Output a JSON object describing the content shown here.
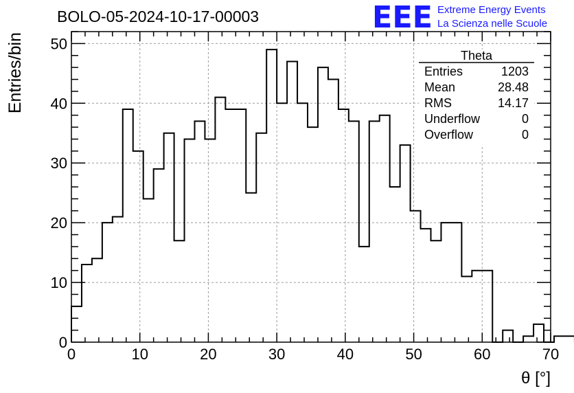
{
  "header": {
    "run_title": "BOLO-05-2024-10-17-00003",
    "logo_text": "EEE",
    "logo_line1": "Extreme Energy Events",
    "logo_line2": "La Scienza nelle Scuole"
  },
  "stats_box": {
    "title": "Theta",
    "rows": [
      {
        "label": "Entries",
        "value": "1203"
      },
      {
        "label": "Mean",
        "value": "28.48"
      },
      {
        "label": "RMS",
        "value": "14.17"
      },
      {
        "label": "Underflow",
        "value": "0"
      },
      {
        "label": "Overflow",
        "value": "0"
      }
    ]
  },
  "colors": {
    "line": "#000000",
    "grid": "#9a9a9a",
    "logo": "#1a1aff"
  },
  "chart_data": {
    "type": "histogram",
    "title": "BOLO-05-2024-10-17-00003",
    "xlabel": "θ [°]",
    "ylabel": "Entries/bin",
    "xlim": [
      0,
      70
    ],
    "ylim": [
      0,
      52
    ],
    "x_ticks": [
      0,
      10,
      20,
      30,
      40,
      50,
      60,
      70
    ],
    "y_ticks": [
      0,
      10,
      20,
      30,
      40,
      50
    ],
    "grid": true,
    "bin_width": 1.5,
    "bin_start": 0,
    "values": [
      6,
      13,
      14,
      20,
      21,
      39,
      32,
      24,
      29,
      35,
      17,
      34,
      37,
      34,
      41,
      39,
      39,
      25,
      35,
      49,
      40,
      47,
      40,
      36,
      46,
      44,
      39,
      37,
      16,
      37,
      38,
      26,
      33,
      22,
      19,
      17,
      20,
      20,
      11,
      12,
      12,
      0,
      2,
      0,
      1,
      3,
      0,
      1,
      1
    ]
  }
}
